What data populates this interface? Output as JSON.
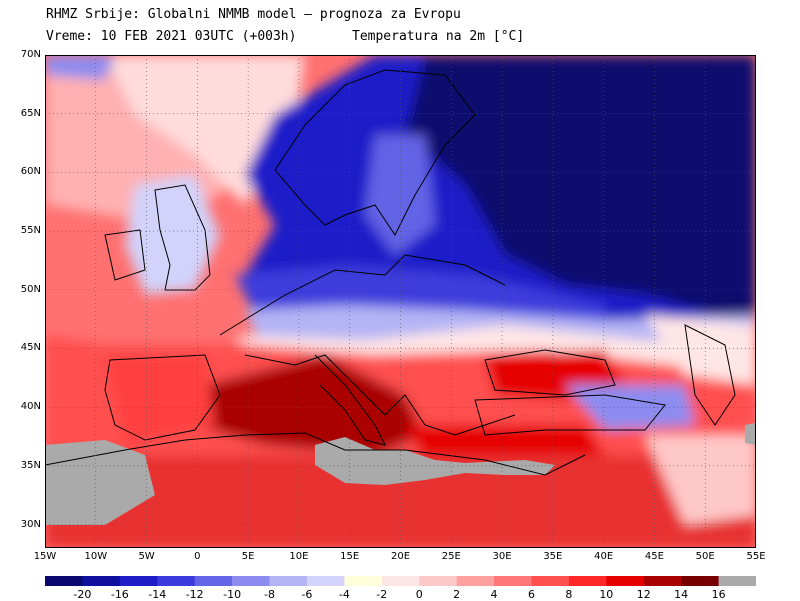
{
  "header": {
    "line1": "RHMZ Srbije: Globalni NMMB model — prognoza za Evropu",
    "line2": "Vreme: 10 FEB 2021 03UTC (+003h)",
    "variable": "Temperatura na 2m [°C]"
  },
  "axes": {
    "lat_labels": [
      "70N",
      "65N",
      "60N",
      "55N",
      "50N",
      "45N",
      "40N",
      "35N",
      "30N"
    ],
    "lon_labels": [
      "15W",
      "10W",
      "5W",
      "0",
      "5E",
      "10E",
      "15E",
      "20E",
      "25E",
      "30E",
      "35E",
      "40E",
      "45E",
      "50E",
      "55E"
    ]
  },
  "colorbar": {
    "labels": [
      "-20",
      "-16",
      "-14",
      "-12",
      "-10",
      "-8",
      "-6",
      "-4",
      "-2",
      "0",
      "2",
      "4",
      "6",
      "8",
      "10",
      "12",
      "14",
      "16"
    ],
    "colors": [
      "#0a0a6e",
      "#0f0fa0",
      "#1e1ec8",
      "#3c3cdc",
      "#6464e6",
      "#8c8cf0",
      "#b4b4f5",
      "#d2d2fa",
      "#ffffdc",
      "#ffe6e6",
      "#ffc8c8",
      "#ffa0a0",
      "#ff7878",
      "#ff5050",
      "#ff2828",
      "#e60000",
      "#aa0000",
      "#780000",
      "#aaaaaa"
    ]
  },
  "map": {
    "lat_range": [
      28,
      70
    ],
    "lon_range": [
      -15,
      55
    ],
    "land_missing_color": "#aaaaaa"
  }
}
